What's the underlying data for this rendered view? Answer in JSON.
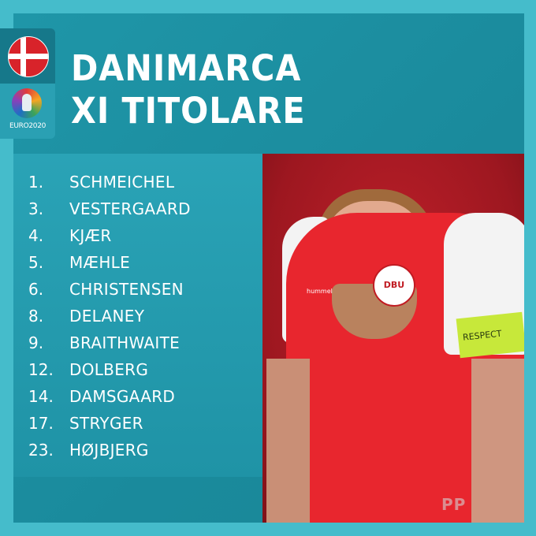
{
  "header": {
    "title_line1": "DANIMARCA",
    "title_line2": "XI TITOLARE"
  },
  "badges": {
    "flag_icon": "denmark-flag",
    "tournament_logo_text": "EURO2020"
  },
  "lineup": [
    {
      "number": "1.",
      "name": "SCHMEICHEL"
    },
    {
      "number": "3.",
      "name": "VESTERGAARD"
    },
    {
      "number": "4.",
      "name": "KJÆR"
    },
    {
      "number": "5.",
      "name": "MÆHLE"
    },
    {
      "number": "6.",
      "name": "CHRISTENSEN"
    },
    {
      "number": "8.",
      "name": "DELANEY"
    },
    {
      "number": "9.",
      "name": "BRAITHWAITE"
    },
    {
      "number": "12.",
      "name": "DOLBERG"
    },
    {
      "number": "14.",
      "name": "DAMSGAARD"
    },
    {
      "number": "17.",
      "name": "STRYGER"
    },
    {
      "number": "23.",
      "name": "HØJBJERG"
    }
  ],
  "photo": {
    "crest_text": "DBU",
    "kit_brand": "hummel",
    "armband_text": "RESPECT"
  },
  "watermark": "PP",
  "colors": {
    "background": "#45bccb",
    "panel": "#1a8a9c",
    "photo_background": "#9d1720",
    "text": "#ffffff"
  }
}
